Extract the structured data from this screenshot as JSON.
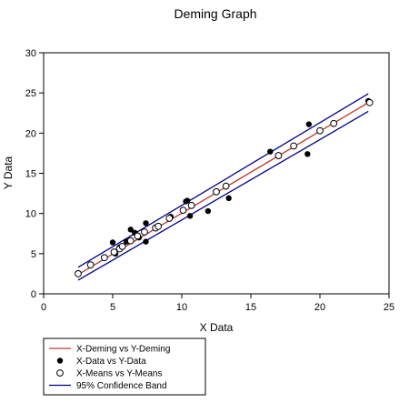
{
  "chart_data": {
    "type": "scatter",
    "title": "Deming Graph",
    "xlabel": "X Data",
    "ylabel": "Y Data",
    "xlim": [
      0,
      25
    ],
    "ylim": [
      0,
      30
    ],
    "xticks": [
      0,
      5,
      10,
      15,
      20,
      25
    ],
    "yticks": [
      0,
      5,
      10,
      15,
      20,
      25,
      30
    ],
    "grid": false,
    "legend_position": "bottom-left",
    "series": [
      {
        "name": "X-Deming vs Y-Deming",
        "kind": "line",
        "color": "#c0392b",
        "x": [
          2.5,
          23.5
        ],
        "y": [
          2.4,
          23.8
        ]
      },
      {
        "name": "X-Data vs Y-Data",
        "kind": "filled-points",
        "color": "#000000",
        "x": [
          2.5,
          5.0,
          5.2,
          5.5,
          6.0,
          6.3,
          6.6,
          6.9,
          7.4,
          7.4,
          9.2,
          10.3,
          10.4,
          10.6,
          11.9,
          13.4,
          16.4,
          19.1,
          19.2,
          23.5
        ],
        "y": [
          2.6,
          6.4,
          5.0,
          5.8,
          6.5,
          8.0,
          7.6,
          7.0,
          6.5,
          8.8,
          9.6,
          11.5,
          11.6,
          9.7,
          10.3,
          11.9,
          17.7,
          17.4,
          21.1,
          24.0
        ]
      },
      {
        "name": "X-Means vs Y-Means",
        "kind": "open-points",
        "color": "#000000",
        "x": [
          2.5,
          3.4,
          4.4,
          5.1,
          5.5,
          5.7,
          6.3,
          6.8,
          7.3,
          8.1,
          8.3,
          9.1,
          10.1,
          10.7,
          12.5,
          13.2,
          17.0,
          18.1,
          20.0,
          21.0,
          23.6
        ],
        "y": [
          2.5,
          3.6,
          4.5,
          5.2,
          5.6,
          5.9,
          6.6,
          7.2,
          7.7,
          8.2,
          8.4,
          9.4,
          10.4,
          11.0,
          12.7,
          13.4,
          17.2,
          18.4,
          20.3,
          21.2,
          23.8
        ]
      },
      {
        "name": "95% Confidence Band",
        "kind": "band",
        "color": "#00008b",
        "x": [
          2.5,
          23.5
        ],
        "upper": [
          3.3,
          24.9
        ],
        "lower": [
          1.7,
          22.7
        ]
      }
    ]
  }
}
